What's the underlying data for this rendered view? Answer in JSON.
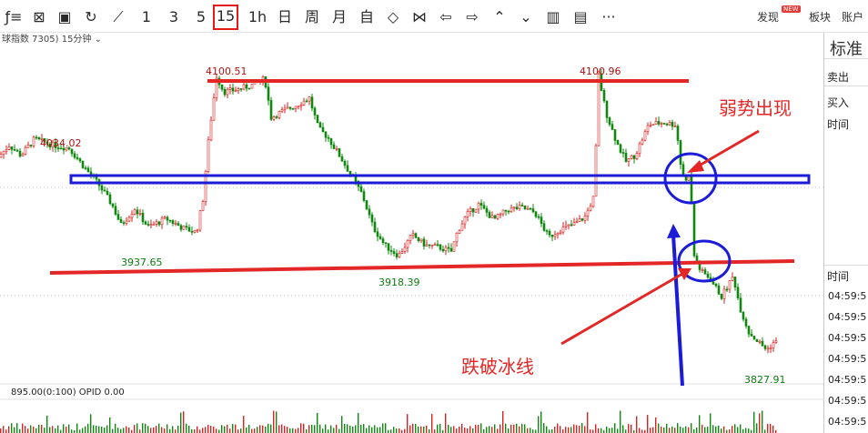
{
  "toolbar": {
    "buttons": [
      {
        "name": "formula-icon",
        "glyph": "ƒ≡"
      },
      {
        "name": "chart-image-icon",
        "glyph": "⊠"
      },
      {
        "name": "save-icon",
        "glyph": "▣"
      },
      {
        "name": "refresh-icon",
        "glyph": "↻"
      },
      {
        "name": "draw-line-icon",
        "glyph": "⟋"
      },
      {
        "name": "period-1",
        "glyph": "1"
      },
      {
        "name": "period-3",
        "glyph": "3"
      },
      {
        "name": "period-5",
        "glyph": "5"
      },
      {
        "name": "period-15",
        "glyph": "15"
      },
      {
        "name": "period-1h",
        "glyph": "1h"
      },
      {
        "name": "period-day",
        "glyph": "日"
      },
      {
        "name": "period-week",
        "glyph": "周"
      },
      {
        "name": "period-month",
        "glyph": "月"
      },
      {
        "name": "period-custom",
        "glyph": "自"
      },
      {
        "name": "zoom-both-icon",
        "glyph": "◇"
      },
      {
        "name": "zoom-in-icon",
        "glyph": "⋈"
      },
      {
        "name": "move-left-icon",
        "glyph": "⇦"
      },
      {
        "name": "move-right-icon",
        "glyph": "⇨"
      },
      {
        "name": "scroll-up-icon",
        "glyph": "⌃"
      },
      {
        "name": "scroll-down-icon",
        "glyph": "⌄"
      },
      {
        "name": "split-view-icon",
        "glyph": "▥"
      },
      {
        "name": "notes-icon",
        "glyph": "▤"
      },
      {
        "name": "more-icon",
        "glyph": "···"
      }
    ],
    "discover": "发现",
    "new_badge": "NEW",
    "sector": "板块",
    "account": "账户"
  },
  "info": {
    "text": "球指数 7305)   15分钟 ⌄"
  },
  "side": {
    "title": "标准",
    "sell": "卖出",
    "buy": "买入",
    "time1": "时间",
    "time2": "时间",
    "times": [
      "04:59:5",
      "04:59:5",
      "04:59:5",
      "04:59:5",
      "04:59:5",
      "04:59:5",
      "04:59:5",
      "04:59:5"
    ]
  },
  "bottom": {
    "text": "895.00(0:100)   OPID 0.00"
  },
  "annotations": {
    "weak": "弱势出现",
    "breakdown": "跌破冰线"
  },
  "chart_data": {
    "type": "candlestick",
    "period": "15分钟",
    "ylim": [
      3800,
      4120
    ],
    "high_labels": [
      {
        "value": "4034.02",
        "at": 40
      },
      {
        "value": "4100.51",
        "at": 228
      },
      {
        "value": "4100.96",
        "at": 636
      }
    ],
    "low_labels": [
      {
        "value": "3937.65",
        "at": 135
      },
      {
        "value": "3918.39",
        "at": 418
      },
      {
        "value": "3827.91",
        "at": 818
      }
    ],
    "path_points": [
      [
        0,
        4016
      ],
      [
        12,
        4028
      ],
      [
        25,
        4018
      ],
      [
        40,
        4034
      ],
      [
        60,
        4028
      ],
      [
        78,
        4025
      ],
      [
        95,
        4006
      ],
      [
        110,
        3990
      ],
      [
        125,
        3970
      ],
      [
        135,
        3950
      ],
      [
        150,
        3966
      ],
      [
        165,
        3948
      ],
      [
        185,
        3956
      ],
      [
        205,
        3946
      ],
      [
        218,
        3943
      ],
      [
        225,
        3975
      ],
      [
        232,
        4040
      ],
      [
        240,
        4095
      ],
      [
        248,
        4080
      ],
      [
        262,
        4082
      ],
      [
        280,
        4087
      ],
      [
        293,
        4093
      ],
      [
        300,
        4055
      ],
      [
        315,
        4062
      ],
      [
        330,
        4068
      ],
      [
        342,
        4074
      ],
      [
        352,
        4044
      ],
      [
        362,
        4036
      ],
      [
        375,
        4018
      ],
      [
        385,
        4003
      ],
      [
        400,
        3980
      ],
      [
        412,
        3948
      ],
      [
        425,
        3930
      ],
      [
        440,
        3920
      ],
      [
        455,
        3940
      ],
      [
        470,
        3930
      ],
      [
        485,
        3928
      ],
      [
        498,
        3924
      ],
      [
        505,
        3944
      ],
      [
        515,
        3960
      ],
      [
        528,
        3970
      ],
      [
        545,
        3955
      ],
      [
        560,
        3965
      ],
      [
        575,
        3967
      ],
      [
        590,
        3962
      ],
      [
        605,
        3938
      ],
      [
        618,
        3946
      ],
      [
        632,
        3950
      ],
      [
        645,
        3958
      ],
      [
        655,
        3978
      ],
      [
        660,
        4096
      ],
      [
        668,
        4060
      ],
      [
        680,
        4030
      ],
      [
        690,
        4012
      ],
      [
        700,
        4018
      ],
      [
        715,
        4048
      ],
      [
        730,
        4050
      ],
      [
        745,
        4048
      ],
      [
        750,
        4010
      ],
      [
        755,
        3990
      ],
      [
        760,
        4003
      ],
      [
        765,
        3920
      ],
      [
        772,
        3905
      ],
      [
        782,
        3898
      ],
      [
        795,
        3880
      ],
      [
        808,
        3900
      ],
      [
        815,
        3870
      ],
      [
        825,
        3845
      ],
      [
        835,
        3836
      ],
      [
        845,
        3828
      ],
      [
        852,
        3835
      ]
    ],
    "drawings": {
      "resistance_value": 4100,
      "support_start": 3915,
      "support_end": 3929,
      "ice_line": 4000
    }
  }
}
